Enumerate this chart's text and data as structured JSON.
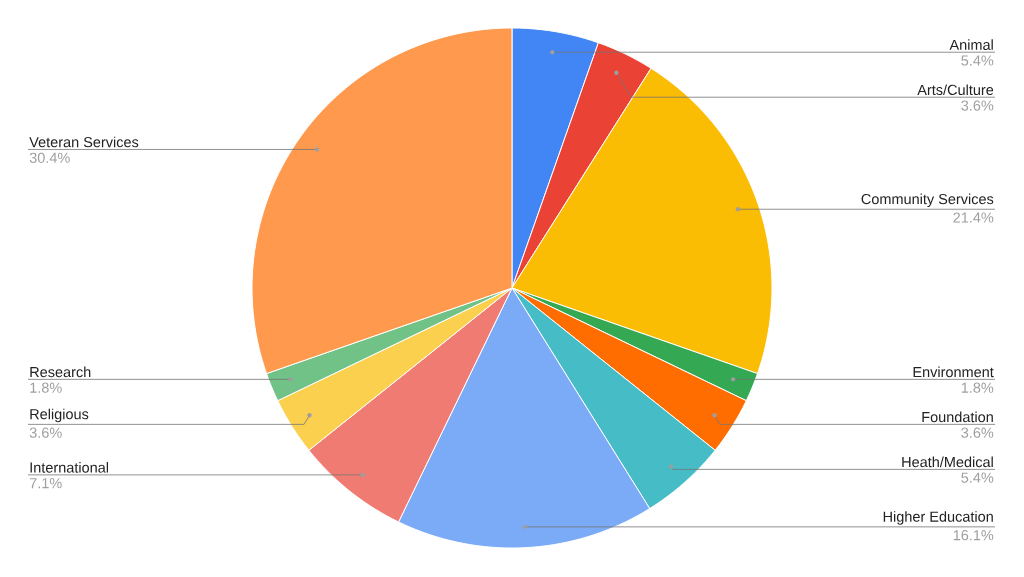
{
  "chart_data": {
    "type": "pie",
    "categories": [
      "Animal",
      "Arts/Culture",
      "Community Services",
      "Environment",
      "Foundation",
      "Heath/Medical",
      "Higher Education",
      "International",
      "Religious",
      "Research",
      "Veteran Services"
    ],
    "values": [
      5.4,
      3.6,
      21.4,
      1.8,
      3.6,
      5.4,
      16.1,
      7.1,
      3.6,
      1.8,
      30.4
    ],
    "value_labels": [
      "5.4%",
      "3.6%",
      "21.4%",
      "1.8%",
      "3.6%",
      "5.4%",
      "16.1%",
      "7.1%",
      "3.6%",
      "1.8%",
      "30.4%"
    ],
    "colors": [
      "#4285f4",
      "#ea4335",
      "#fbbc04",
      "#34a853",
      "#ff6d01",
      "#46bdc6",
      "#7baaf7",
      "#f07b72",
      "#fcd04f",
      "#71c287",
      "#ff994d"
    ]
  }
}
